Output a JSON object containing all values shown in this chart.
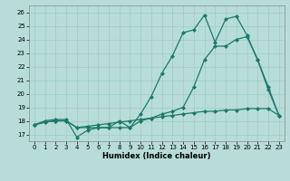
{
  "title": "",
  "xlabel": "Humidex (Indice chaleur)",
  "ylabel": "",
  "bg_color": "#b8ddd8",
  "line_color": "#1a7a6a",
  "grid_color": "#9fccc6",
  "xlim": [
    -0.5,
    23.5
  ],
  "ylim": [
    16.5,
    26.5
  ],
  "yticks": [
    17,
    18,
    19,
    20,
    21,
    22,
    23,
    24,
    25,
    26
  ],
  "xticks": [
    0,
    1,
    2,
    3,
    4,
    5,
    6,
    7,
    8,
    9,
    10,
    11,
    12,
    13,
    14,
    15,
    16,
    17,
    18,
    19,
    20,
    21,
    22,
    23
  ],
  "series1": {
    "x": [
      0,
      1,
      2,
      3,
      4,
      5,
      6,
      7,
      8,
      9,
      10,
      11,
      12,
      13,
      14,
      15,
      16,
      17,
      18,
      19,
      20,
      21,
      22,
      23
    ],
    "y": [
      17.7,
      18.0,
      18.1,
      18.1,
      16.8,
      17.3,
      17.5,
      17.5,
      18.0,
      17.5,
      18.5,
      19.8,
      21.5,
      22.8,
      24.5,
      24.7,
      25.8,
      23.8,
      25.5,
      25.7,
      24.3,
      22.5,
      20.3,
      18.4
    ]
  },
  "series2": {
    "x": [
      0,
      1,
      2,
      3,
      4,
      5,
      6,
      7,
      8,
      9,
      10,
      11,
      12,
      13,
      14,
      15,
      16,
      17,
      18,
      19,
      20,
      21,
      22,
      23
    ],
    "y": [
      17.7,
      17.9,
      18.0,
      18.0,
      17.5,
      17.5,
      17.5,
      17.5,
      17.5,
      17.5,
      18.0,
      18.2,
      18.5,
      18.7,
      19.0,
      20.5,
      22.5,
      23.5,
      23.5,
      24.0,
      24.2,
      22.5,
      20.5,
      18.4
    ]
  },
  "series3": {
    "x": [
      0,
      1,
      2,
      3,
      4,
      5,
      6,
      7,
      8,
      9,
      10,
      11,
      12,
      13,
      14,
      15,
      16,
      17,
      18,
      19,
      20,
      21,
      22,
      23
    ],
    "y": [
      17.7,
      17.9,
      18.0,
      18.0,
      17.5,
      17.6,
      17.7,
      17.8,
      17.9,
      18.0,
      18.1,
      18.2,
      18.3,
      18.4,
      18.5,
      18.6,
      18.7,
      18.7,
      18.8,
      18.8,
      18.9,
      18.9,
      18.9,
      18.4
    ]
  },
  "marker": "D",
  "marker_size": 2.0,
  "linewidth": 0.9,
  "tick_fontsize": 5.0,
  "xlabel_fontsize": 6.0
}
